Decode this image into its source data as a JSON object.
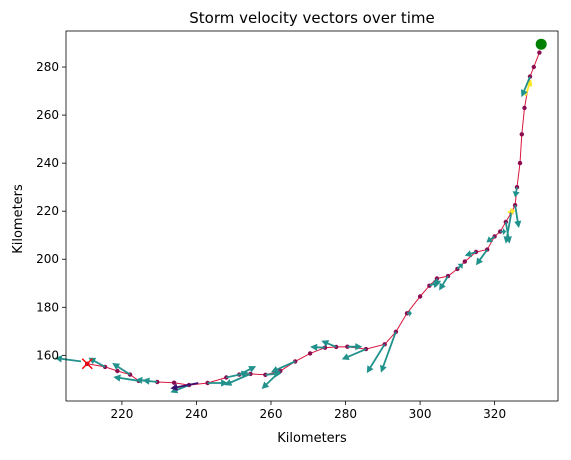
{
  "chart_data": {
    "type": "scatter",
    "title": "Storm velocity vectors over time",
    "xlabel": "Kilometers",
    "ylabel": "Kilometers",
    "xlim": [
      205,
      337
    ],
    "ylim": [
      141,
      295
    ],
    "xticks": [
      220,
      240,
      260,
      280,
      300,
      320
    ],
    "yticks": [
      160,
      180,
      200,
      220,
      240,
      260,
      280
    ],
    "grid": false,
    "legend": "none",
    "colors": {
      "track_line": "#dc143c",
      "track_points": "#8b0a50",
      "vectors": "#21918c",
      "start_marker": "#ff0000",
      "end_marker": "#008000"
    },
    "markers": {
      "start": {
        "x": 210.7,
        "y": 156.5,
        "shape": "x"
      },
      "end": {
        "x": 332.5,
        "y": 289.5,
        "shape": "circle"
      }
    },
    "track": [
      {
        "x": 210.7,
        "y": 156.5
      },
      {
        "x": 215.5,
        "y": 155.2
      },
      {
        "x": 218.8,
        "y": 153.5
      },
      {
        "x": 222.2,
        "y": 152.0
      },
      {
        "x": 224.5,
        "y": 149.4
      },
      {
        "x": 226.8,
        "y": 149.4
      },
      {
        "x": 229.5,
        "y": 148.9
      },
      {
        "x": 234.0,
        "y": 148.6
      },
      {
        "x": 238.0,
        "y": 147.6
      },
      {
        "x": 243.0,
        "y": 148.5
      },
      {
        "x": 248.0,
        "y": 150.8
      },
      {
        "x": 251.5,
        "y": 152.0
      },
      {
        "x": 254.5,
        "y": 152.3
      },
      {
        "x": 258.5,
        "y": 151.9
      },
      {
        "x": 262.5,
        "y": 153.5
      },
      {
        "x": 266.5,
        "y": 157.5
      },
      {
        "x": 270.5,
        "y": 160.8
      },
      {
        "x": 274.5,
        "y": 163.2
      },
      {
        "x": 277.5,
        "y": 163.5
      },
      {
        "x": 280.5,
        "y": 163.6
      },
      {
        "x": 285.5,
        "y": 162.6
      },
      {
        "x": 290.5,
        "y": 164.6
      },
      {
        "x": 293.5,
        "y": 169.8
      },
      {
        "x": 296.5,
        "y": 177.5
      },
      {
        "x": 300.0,
        "y": 184.5
      },
      {
        "x": 302.5,
        "y": 189.0
      },
      {
        "x": 304.5,
        "y": 192.0
      },
      {
        "x": 307.5,
        "y": 193.0
      },
      {
        "x": 310.0,
        "y": 196.0
      },
      {
        "x": 312.0,
        "y": 199.0
      },
      {
        "x": 315.0,
        "y": 203.0
      },
      {
        "x": 318.0,
        "y": 204.0
      },
      {
        "x": 320.0,
        "y": 209.5
      },
      {
        "x": 321.5,
        "y": 211.5
      },
      {
        "x": 323.0,
        "y": 215.5
      },
      {
        "x": 324.5,
        "y": 219.5
      },
      {
        "x": 325.5,
        "y": 222.5
      },
      {
        "x": 326.0,
        "y": 230.0
      },
      {
        "x": 326.8,
        "y": 240.0
      },
      {
        "x": 327.3,
        "y": 252.0
      },
      {
        "x": 328.0,
        "y": 263.0
      },
      {
        "x": 329.5,
        "y": 276.0
      },
      {
        "x": 330.5,
        "y": 280.0
      },
      {
        "x": 332.0,
        "y": 286.0
      }
    ],
    "vectors": [
      {
        "x": 209.0,
        "y": 157.5,
        "u": -7.0,
        "v": 1.4,
        "color": "#21918c"
      },
      {
        "x": 215.5,
        "y": 155.2,
        "u": -4.5,
        "v": 3.8,
        "color": "#21918c"
      },
      {
        "x": 222.2,
        "y": 152.0,
        "u": -4.8,
        "v": 4.8,
        "color": "#21918c"
      },
      {
        "x": 224.5,
        "y": 149.4,
        "u": -6.8,
        "v": 1.6,
        "color": "#21918c"
      },
      {
        "x": 226.8,
        "y": 149.4,
        "u": -3.0,
        "v": 0.5,
        "color": "#21918c"
      },
      {
        "x": 229.5,
        "y": 148.9,
        "u": -4.0,
        "v": 0.7,
        "color": "#21918c"
      },
      {
        "x": 238.0,
        "y": 147.6,
        "u": -5.0,
        "v": -3.0,
        "color": "#21918c"
      },
      {
        "x": 240.5,
        "y": 148.5,
        "u": -7.5,
        "v": -2.3,
        "color": "#3b0f70"
      },
      {
        "x": 243.0,
        "y": 148.5,
        "u": 5.5,
        "v": 0.0,
        "color": "#21918c"
      },
      {
        "x": 248.0,
        "y": 150.8,
        "u": 6.0,
        "v": 2.0,
        "color": "#21918c"
      },
      {
        "x": 251.5,
        "y": 152.0,
        "u": 4.5,
        "v": 3.5,
        "color": "#21918c"
      },
      {
        "x": 254.5,
        "y": 152.3,
        "u": -7.0,
        "v": -4.7,
        "color": "#21918c"
      },
      {
        "x": 258.5,
        "y": 151.9,
        "u": 4.3,
        "v": 0.6,
        "color": "#21918c"
      },
      {
        "x": 262.5,
        "y": 153.5,
        "u": -5.0,
        "v": -7.5,
        "color": "#21918c"
      },
      {
        "x": 266.5,
        "y": 157.5,
        "u": -6.5,
        "v": -4.5,
        "color": "#21918c"
      },
      {
        "x": 274.5,
        "y": 163.2,
        "u": -4.0,
        "v": 0.3,
        "color": "#21918c"
      },
      {
        "x": 277.5,
        "y": 163.5,
        "u": -4.0,
        "v": 2.6,
        "color": "#21918c"
      },
      {
        "x": 280.5,
        "y": 163.6,
        "u": 4.0,
        "v": 0.0,
        "color": "#21918c"
      },
      {
        "x": 285.5,
        "y": 162.6,
        "u": -6.5,
        "v": -4.3,
        "color": "#21918c"
      },
      {
        "x": 290.5,
        "y": 164.6,
        "u": -4.8,
        "v": -12.0,
        "color": "#21918c"
      },
      {
        "x": 293.5,
        "y": 169.8,
        "u": -4.0,
        "v": -17.0,
        "color": "#21918c"
      },
      {
        "x": 296.5,
        "y": 177.5,
        "u": 1.3,
        "v": 0.0,
        "color": "#21918c"
      },
      {
        "x": 302.5,
        "y": 189.0,
        "u": 3.2,
        "v": 2.0,
        "color": "#21918c"
      },
      {
        "x": 304.5,
        "y": 192.0,
        "u": -0.6,
        "v": -4.0,
        "color": "#21918c"
      },
      {
        "x": 307.5,
        "y": 193.0,
        "u": -2.4,
        "v": -6.0,
        "color": "#21918c"
      },
      {
        "x": 310.0,
        "y": 196.0,
        "u": 1.5,
        "v": 2.2,
        "color": "#21918c"
      },
      {
        "x": 315.0,
        "y": 203.0,
        "u": -3.0,
        "v": -1.5,
        "color": "#21918c"
      },
      {
        "x": 318.0,
        "y": 204.0,
        "u": -3.0,
        "v": -6.5,
        "color": "#21918c"
      },
      {
        "x": 320.0,
        "y": 209.5,
        "u": -2.2,
        "v": -2.5,
        "color": "#21918c"
      },
      {
        "x": 321.5,
        "y": 211.5,
        "u": 1.6,
        "v": 0.0,
        "color": "#21918c"
      },
      {
        "x": 323.0,
        "y": 215.5,
        "u": 1.0,
        "v": -9.0,
        "color": "#21918c"
      },
      {
        "x": 324.5,
        "y": 219.5,
        "u": -1.5,
        "v": -13.0,
        "color": "#21918c"
      },
      {
        "x": 325.5,
        "y": 222.5,
        "u": 1.0,
        "v": -9.5,
        "color": "#21918c"
      },
      {
        "x": 326.0,
        "y": 230.0,
        "u": -0.5,
        "v": -4.2,
        "color": "#21918c"
      },
      {
        "x": 323.5,
        "y": 219.5,
        "u": 2.0,
        "v": 0.8,
        "color": "#fde725"
      },
      {
        "x": 328.3,
        "y": 268.0,
        "u": 1.5,
        "v": 7.0,
        "color": "#fde725"
      },
      {
        "x": 329.5,
        "y": 276.0,
        "u": -2.3,
        "v": -8.5,
        "color": "#21918c"
      }
    ]
  }
}
